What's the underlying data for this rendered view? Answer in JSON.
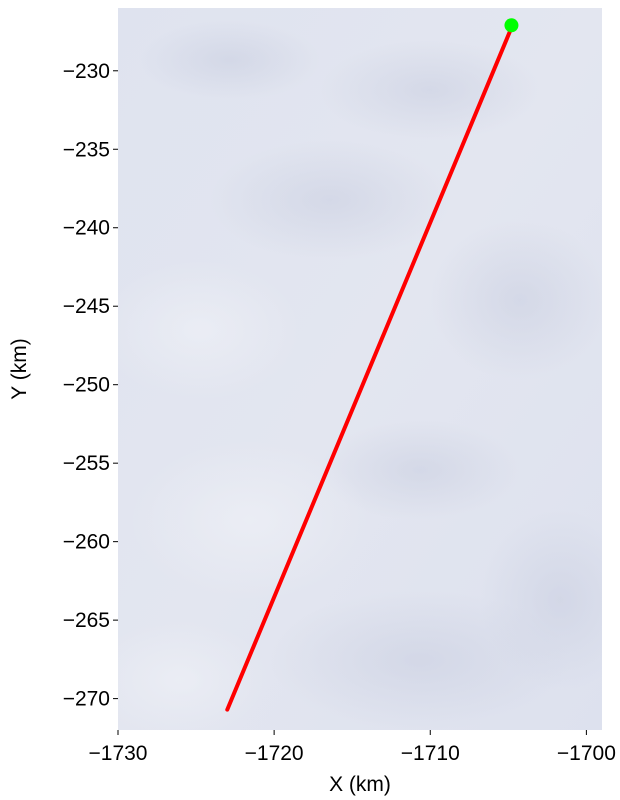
{
  "chart_data": {
    "type": "line",
    "title": "",
    "xlabel": "X (km)",
    "ylabel": "Y (km)",
    "xlim": [
      -1730,
      -1699
    ],
    "ylim": [
      -272,
      -226
    ],
    "xticks": [
      -1730,
      -1720,
      -1710,
      -1700
    ],
    "yticks": [
      -230,
      -235,
      -240,
      -245,
      -250,
      -255,
      -260,
      -265,
      -270
    ],
    "xtick_labels": [
      "−1730",
      "−1720",
      "−1710",
      "−1700"
    ],
    "ytick_labels": [
      "−230",
      "−235",
      "−240",
      "−245",
      "−250",
      "−255",
      "−260",
      "−265",
      "−270"
    ],
    "grid": false,
    "background": "satellite imagery (pale blue-grey ice surface)",
    "series": [
      {
        "color": "#ff0000",
        "x": [
          -1723.0,
          -1704.9
        ],
        "y": [
          -270.7,
          -227.5
        ]
      }
    ],
    "markers": [
      {
        "x": -1704.8,
        "y": -227.1,
        "color": "#00ff00"
      }
    ]
  }
}
